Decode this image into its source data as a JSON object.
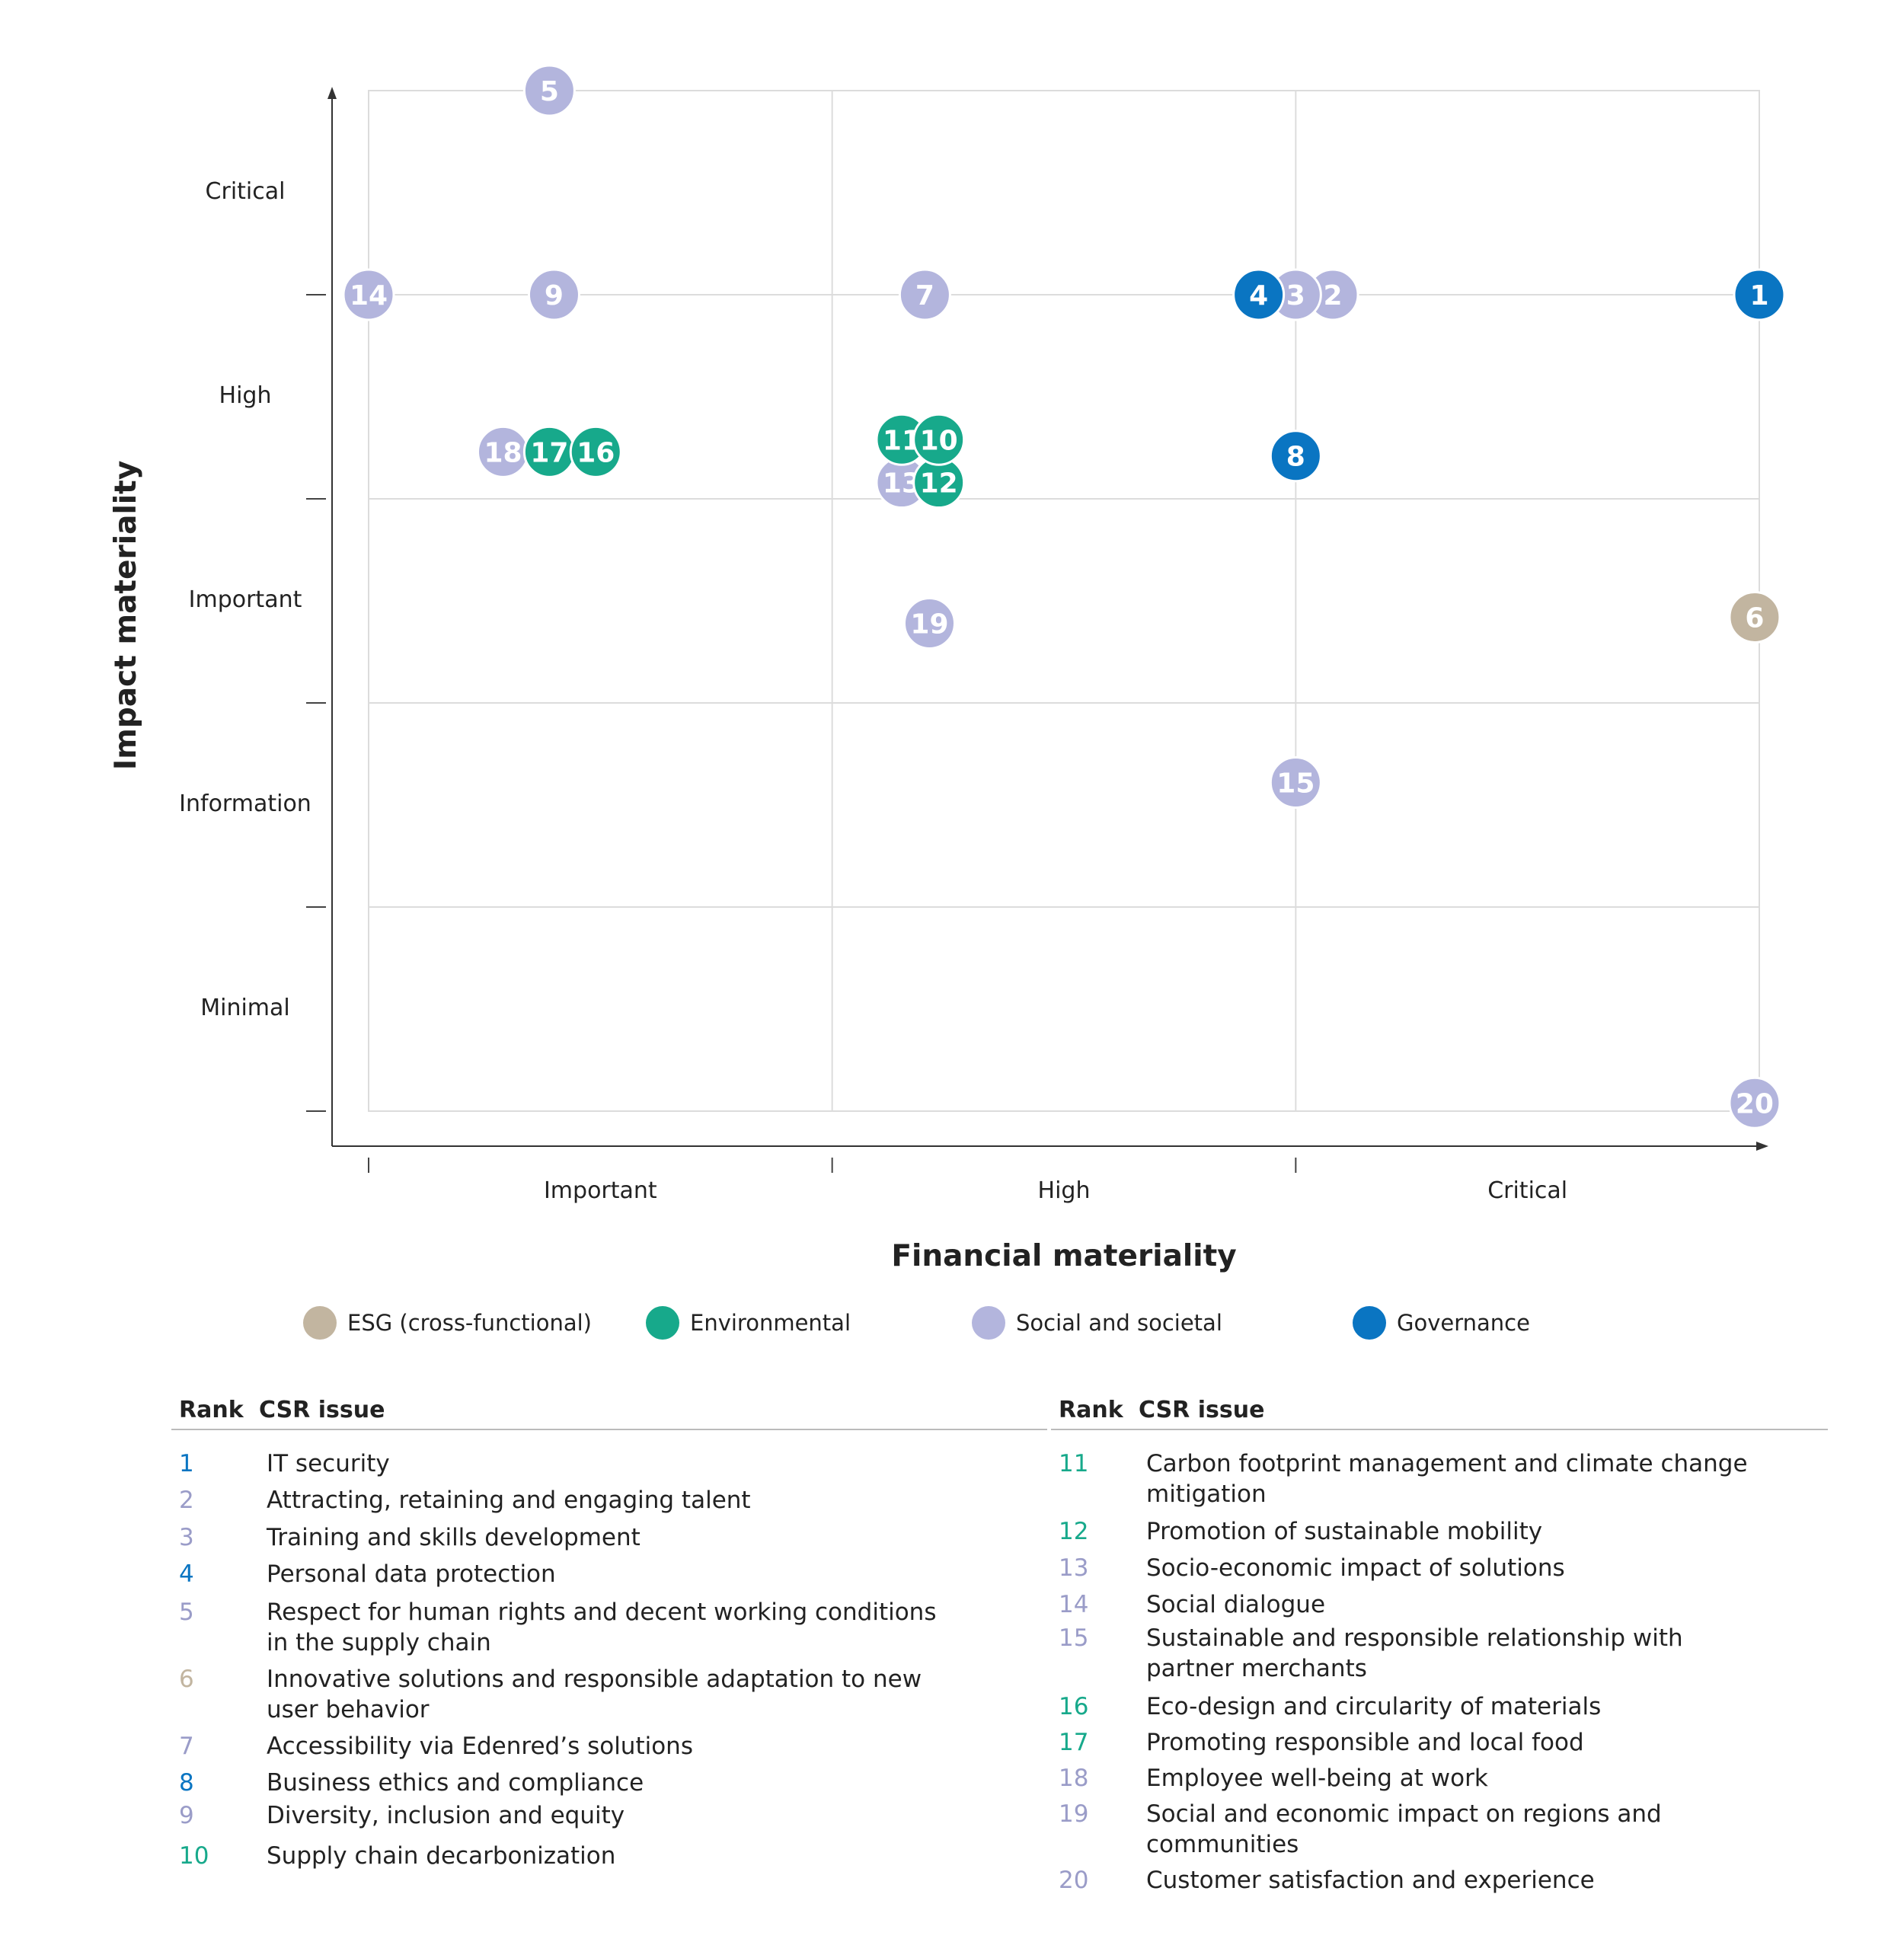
{
  "chart_data": {
    "type": "scatter",
    "xlabel": "Financial materiality",
    "ylabel": "Impact materiality",
    "x_categories": [
      "Important",
      "High",
      "Critical"
    ],
    "y_categories": [
      "Critical",
      "High",
      "Important",
      "Information",
      "Minimal"
    ],
    "xlim": [
      0,
      3
    ],
    "ylim": [
      0,
      5
    ],
    "grid": true,
    "legend_position": "bottom",
    "series": [
      {
        "name": "ESG (cross-functional)",
        "color": "#c2b5a0"
      },
      {
        "name": "Environmental",
        "color": "#17a98b"
      },
      {
        "name": "Social and societal",
        "color": "#b3b5dd"
      },
      {
        "name": "Governance",
        "color": "#0a75c2"
      }
    ],
    "points": [
      {
        "id": "1",
        "x": 3.0,
        "y": 4.0,
        "series": "Governance"
      },
      {
        "id": "2",
        "x": 2.08,
        "y": 4.0,
        "series": "Social and societal"
      },
      {
        "id": "3",
        "x": 2.0,
        "y": 4.0,
        "series": "Social and societal"
      },
      {
        "id": "4",
        "x": 1.92,
        "y": 4.0,
        "series": "Governance"
      },
      {
        "id": "5",
        "x": 0.39,
        "y": 5.0,
        "series": "Social and societal"
      },
      {
        "id": "6",
        "x": 2.99,
        "y": 2.42,
        "series": "ESG (cross-functional)"
      },
      {
        "id": "7",
        "x": 1.2,
        "y": 4.0,
        "series": "Social and societal"
      },
      {
        "id": "8",
        "x": 2.0,
        "y": 3.21,
        "series": "Governance"
      },
      {
        "id": "9",
        "x": 0.4,
        "y": 4.0,
        "series": "Social and societal"
      },
      {
        "id": "10",
        "x": 1.23,
        "y": 3.29,
        "series": "Environmental"
      },
      {
        "id": "11",
        "x": 1.15,
        "y": 3.29,
        "series": "Environmental"
      },
      {
        "id": "12",
        "x": 1.23,
        "y": 3.08,
        "series": "Environmental"
      },
      {
        "id": "13",
        "x": 1.15,
        "y": 3.08,
        "series": "Social and societal"
      },
      {
        "id": "14",
        "x": 0.0,
        "y": 4.0,
        "series": "Social and societal"
      },
      {
        "id": "15",
        "x": 2.0,
        "y": 1.61,
        "series": "Social and societal"
      },
      {
        "id": "16",
        "x": 0.49,
        "y": 3.23,
        "series": "Environmental"
      },
      {
        "id": "17",
        "x": 0.39,
        "y": 3.23,
        "series": "Environmental"
      },
      {
        "id": "18",
        "x": 0.29,
        "y": 3.23,
        "series": "Social and societal"
      },
      {
        "id": "19",
        "x": 1.21,
        "y": 2.39,
        "series": "Social and societal"
      },
      {
        "id": "20",
        "x": 2.99,
        "y": 0.04,
        "series": "Social and societal"
      }
    ]
  },
  "table": {
    "rank_header": "Rank",
    "issue_header": "CSR issue",
    "rows": [
      {
        "rank": "1",
        "issue": "IT security",
        "series": "Governance"
      },
      {
        "rank": "2",
        "issue": "Attracting, retaining and engaging talent",
        "series": "Social and societal"
      },
      {
        "rank": "3",
        "issue": "Training and skills development",
        "series": "Social and societal"
      },
      {
        "rank": "4",
        "issue": "Personal data protection",
        "series": "Governance"
      },
      {
        "rank": "5",
        "issue": "Respect for human rights and decent working conditions in the supply chain",
        "series": "Social and societal"
      },
      {
        "rank": "6",
        "issue": "Innovative solutions and responsible adaptation to new user behavior",
        "series": "ESG (cross-functional)"
      },
      {
        "rank": "7",
        "issue": "Accessibility via Edenred’s solutions",
        "series": "Social and societal"
      },
      {
        "rank": "8",
        "issue": "Business ethics and compliance",
        "series": "Governance"
      },
      {
        "rank": "9",
        "issue": "Diversity, inclusion and equity",
        "series": "Social and societal"
      },
      {
        "rank": "10",
        "issue": "Supply chain decarbonization",
        "series": "Environmental"
      },
      {
        "rank": "11",
        "issue": "Carbon footprint management and climate change mitigation",
        "series": "Environmental"
      },
      {
        "rank": "12",
        "issue": "Promotion of sustainable mobility",
        "series": "Environmental"
      },
      {
        "rank": "13",
        "issue": "Socio-economic impact of solutions",
        "series": "Social and societal"
      },
      {
        "rank": "14",
        "issue": "Social dialogue",
        "series": "Social and societal"
      },
      {
        "rank": "15",
        "issue": "Sustainable and responsible relationship with partner merchants",
        "series": "Social and societal"
      },
      {
        "rank": "16",
        "issue": "Eco-design and circularity of materials",
        "series": "Environmental"
      },
      {
        "rank": "17",
        "issue": "Promoting responsible and local food",
        "series": "Environmental"
      },
      {
        "rank": "18",
        "issue": "Employee well-being at work",
        "series": "Social and societal"
      },
      {
        "rank": "19",
        "issue": "Social and economic impact on regions and communities",
        "series": "Social and societal"
      },
      {
        "rank": "20",
        "issue": "Customer satisfaction and experience",
        "series": "Social and societal"
      }
    ]
  }
}
